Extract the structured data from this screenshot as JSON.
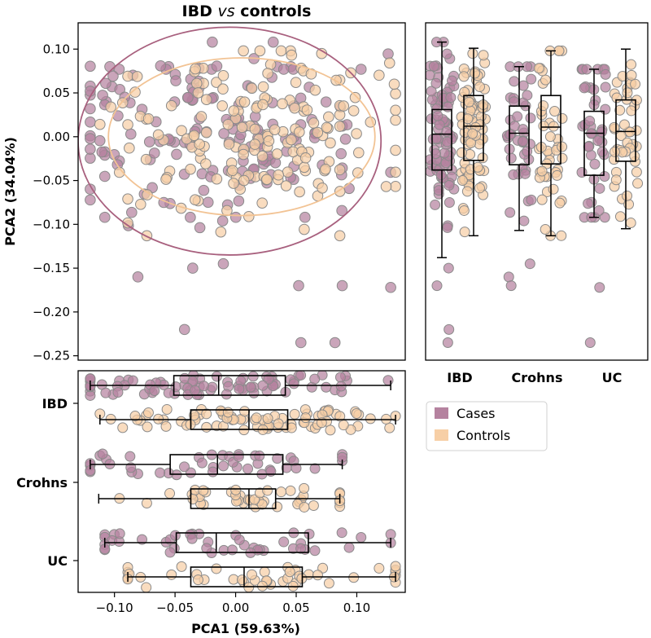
{
  "colors": {
    "cases": "#b5829f",
    "controls": "#f7cfa6",
    "cases_ellipse": "#a8607e",
    "controls_ellipse": "#f2c394",
    "point_edge": "#8a8a8a",
    "box": "#000000"
  },
  "chart_data": [
    {
      "id": "scatter",
      "type": "scatter",
      "title": {
        "main": "IBD ",
        "italic": "vs",
        "rest": " controls"
      },
      "xlabel": "",
      "ylabel": "PCA2 (34.04%)",
      "xlim": [
        -0.13,
        0.14
      ],
      "ylim": [
        -0.255,
        0.13
      ],
      "yticks": [
        0.1,
        0.05,
        0.0,
        -0.05,
        -0.1,
        -0.15,
        -0.2,
        -0.25
      ],
      "ytick_labels": [
        "0.10",
        "0.05",
        "0.00",
        "−0.05",
        "−0.10",
        "−0.15",
        "−0.20",
        "−0.25"
      ],
      "series": [
        {
          "name": "Cases",
          "color_key": "cases",
          "n_points": 175,
          "x_range": [
            -0.12,
            0.13
          ],
          "y_range": [
            -0.235,
            0.105
          ]
        },
        {
          "name": "Controls",
          "color_key": "controls",
          "n_points": 175,
          "x_range": [
            -0.11,
            0.135
          ],
          "y_range": [
            -0.115,
            0.1
          ]
        }
      ],
      "ellipses": [
        {
          "series": "Cases",
          "center": [
            -0.005,
            -0.005
          ],
          "semi_axes": [
            0.125,
            0.13
          ]
        },
        {
          "series": "Controls",
          "center": [
            0.005,
            0.0
          ],
          "semi_axes": [
            0.11,
            0.09
          ]
        }
      ]
    },
    {
      "id": "pca2-box",
      "type": "box",
      "orientation": "vertical",
      "axis": "PCA2",
      "ylim": [
        -0.255,
        0.13
      ],
      "categories": [
        "IBD",
        "Crohns",
        "UC"
      ],
      "boxes": [
        {
          "category": "IBD",
          "series": "Cases",
          "whisker_low": -0.138,
          "q1": -0.038,
          "median": 0.003,
          "q3": 0.031,
          "whisker_high": 0.108
        },
        {
          "category": "IBD",
          "series": "Controls",
          "whisker_low": -0.113,
          "q1": -0.027,
          "median": 0.012,
          "q3": 0.047,
          "whisker_high": 0.101
        },
        {
          "category": "Crohns",
          "series": "Cases",
          "whisker_low": -0.107,
          "q1": -0.032,
          "median": 0.004,
          "q3": 0.035,
          "whisker_high": 0.08
        },
        {
          "category": "Crohns",
          "series": "Controls",
          "whisker_low": -0.113,
          "q1": -0.031,
          "median": 0.011,
          "q3": 0.047,
          "whisker_high": 0.098
        },
        {
          "category": "UC",
          "series": "Cases",
          "whisker_low": -0.092,
          "q1": -0.044,
          "median": 0.004,
          "q3": 0.029,
          "whisker_high": 0.077
        },
        {
          "category": "UC",
          "series": "Controls",
          "whisker_low": -0.105,
          "q1": -0.028,
          "median": 0.006,
          "q3": 0.042,
          "whisker_high": 0.1
        }
      ]
    },
    {
      "id": "pca1-box",
      "type": "box",
      "orientation": "horizontal",
      "axis": "PCA1",
      "xlabel": "PCA1 (59.63%)",
      "xlim": [
        -0.13,
        0.14
      ],
      "xticks": [
        -0.1,
        -0.05,
        0.0,
        0.05,
        0.1
      ],
      "xtick_labels": [
        "−0.10",
        "−0.05",
        "0.00",
        "0.05",
        "0.10"
      ],
      "categories": [
        "IBD",
        "Crohns",
        "UC"
      ],
      "boxes": [
        {
          "category": "IBD",
          "series": "Cases",
          "whisker_low": -0.12,
          "q1": -0.051,
          "median": -0.014,
          "q3": 0.041,
          "whisker_high": 0.128
        },
        {
          "category": "IBD",
          "series": "Controls",
          "whisker_low": -0.112,
          "q1": -0.037,
          "median": 0.011,
          "q3": 0.043,
          "whisker_high": 0.132
        },
        {
          "category": "Crohns",
          "series": "Cases",
          "whisker_low": -0.12,
          "q1": -0.054,
          "median": -0.015,
          "q3": 0.039,
          "whisker_high": 0.088
        },
        {
          "category": "Crohns",
          "series": "Controls",
          "whisker_low": -0.113,
          "q1": -0.037,
          "median": 0.011,
          "q3": 0.033,
          "whisker_high": 0.086
        },
        {
          "category": "UC",
          "series": "Cases",
          "whisker_low": -0.108,
          "q1": -0.049,
          "median": -0.016,
          "q3": 0.06,
          "whisker_high": 0.128
        },
        {
          "category": "UC",
          "series": "Controls",
          "whisker_low": -0.089,
          "q1": -0.037,
          "median": 0.007,
          "q3": 0.055,
          "whisker_high": 0.132
        }
      ]
    }
  ],
  "legend": {
    "placement": "right-of-bottom-panel",
    "items": [
      {
        "label": "Cases",
        "color_key": "cases"
      },
      {
        "label": "Controls",
        "color_key": "controls"
      }
    ]
  }
}
